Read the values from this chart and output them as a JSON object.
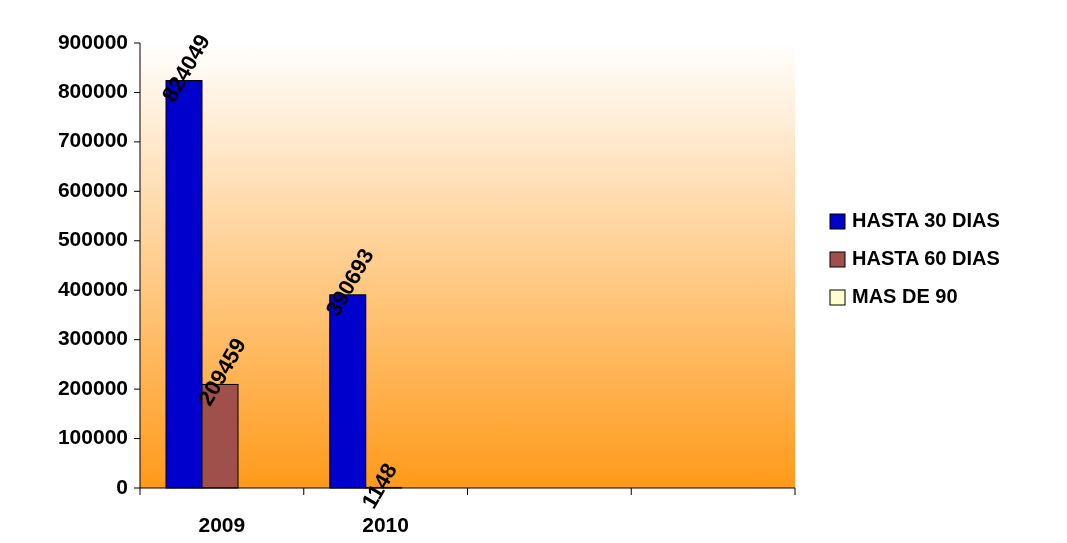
{
  "chart_data": {
    "type": "bar",
    "categories": [
      "2009",
      "2010",
      null,
      null
    ],
    "series": [
      {
        "name": "HASTA 30 DIAS",
        "color": "#0000cc",
        "values": [
          824049,
          390693,
          null,
          null
        ]
      },
      {
        "name": "HASTA 60 DIAS",
        "color": "#a0504a",
        "values": [
          209459,
          1148,
          null,
          null
        ]
      },
      {
        "name": "MAS DE 90",
        "color": "#ffffcc",
        "values": [
          null,
          null,
          null,
          null
        ]
      }
    ],
    "ylim": [
      0,
      900000
    ],
    "yticks": [
      0,
      100000,
      200000,
      300000,
      400000,
      500000,
      600000,
      700000,
      800000,
      900000
    ],
    "data_labels": true,
    "legend": "right"
  }
}
